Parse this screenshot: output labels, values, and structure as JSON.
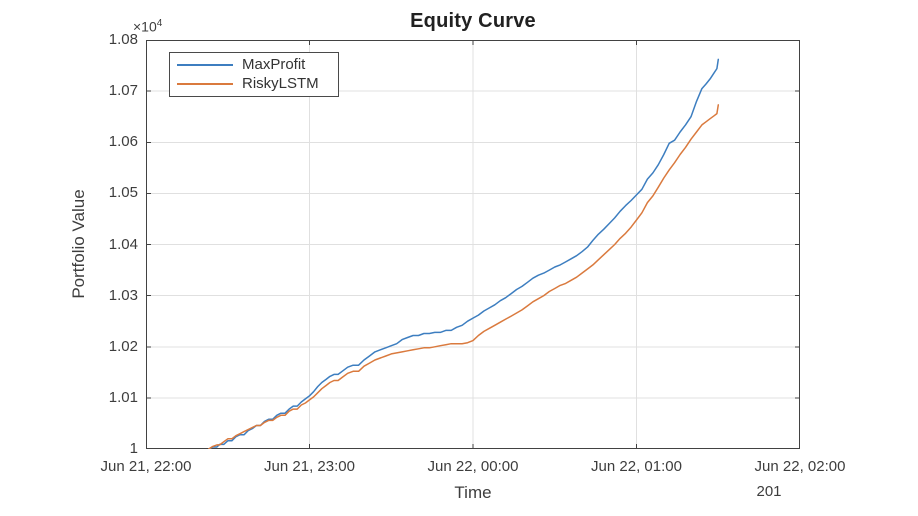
{
  "title": "Equity Curve",
  "axes": {
    "xlabel": "Time",
    "ylabel": "Portfolio Value",
    "secondary_xlabel": "201",
    "y_multiplier_base": "×10",
    "y_multiplier_exp": "4"
  },
  "colors": {
    "background": "#FFFFFF",
    "axis": "#424242",
    "grid": "#E0E0E0",
    "text": "#3D3D3D",
    "title_text": "#212121",
    "maxprofit_line": "#3D7EC0",
    "riskylstm_line": "#DA7A3E"
  },
  "chart_data": {
    "type": "line",
    "title": "Equity Curve",
    "xlabel": "Time",
    "ylabel": "Portfolio Value",
    "y_multiplier": "×10^4",
    "secondary_x_annotation": "201",
    "grid": true,
    "legend_position": "top-left-inside",
    "x_unit": "minutes after Jun 21, 22:00",
    "xlim": [
      0,
      240
    ],
    "ylim": [
      10000,
      10800
    ],
    "x_ticks": [
      {
        "pos": 0,
        "label": "Jun 21, 22:00"
      },
      {
        "pos": 60,
        "label": "Jun 21, 23:00"
      },
      {
        "pos": 120,
        "label": "Jun 22, 00:00"
      },
      {
        "pos": 180,
        "label": "Jun 22, 01:00"
      },
      {
        "pos": 240,
        "label": "Jun 22, 02:00"
      }
    ],
    "y_ticks": [
      {
        "pos": 10000,
        "label": "1"
      },
      {
        "pos": 10100,
        "label": "1.01"
      },
      {
        "pos": 10200,
        "label": "1.02"
      },
      {
        "pos": 10300,
        "label": "1.03"
      },
      {
        "pos": 10400,
        "label": "1.04"
      },
      {
        "pos": 10500,
        "label": "1.05"
      },
      {
        "pos": 10600,
        "label": "1.06"
      },
      {
        "pos": 10700,
        "label": "1.07"
      },
      {
        "pos": 10800,
        "label": "1.08"
      }
    ],
    "x_minutes": [
      23,
      24.5,
      26,
      27,
      28.5,
      30,
      31.5,
      33,
      34.5,
      36,
      37.5,
      39,
      40.5,
      42,
      43.5,
      45,
      46.5,
      48,
      49.5,
      51,
      52.5,
      54,
      55.5,
      57,
      58.5,
      60,
      61.5,
      63,
      64.5,
      66,
      67.5,
      69,
      70.5,
      72,
      74,
      76,
      78,
      80,
      82,
      84,
      86,
      88,
      90,
      92,
      94,
      96,
      98,
      100,
      102,
      104,
      106,
      108,
      110,
      112,
      114,
      116,
      118,
      120,
      122,
      124,
      126,
      128,
      130,
      132,
      134,
      136,
      138,
      140,
      142,
      144,
      146,
      148,
      150,
      152,
      154,
      156,
      158,
      160,
      162,
      164,
      166,
      168,
      170,
      172,
      174,
      176,
      178,
      180,
      182,
      184,
      186,
      188,
      190,
      192,
      194,
      196,
      198,
      200,
      202,
      204,
      205.5,
      207,
      208.5,
      209.5,
      210
    ],
    "series": [
      {
        "name": "MaxProfit",
        "color": "#3D7EC0",
        "values": [
          10000,
          10004,
          10004,
          10009,
          10009,
          10016,
          10016,
          10024,
          10028,
          10028,
          10036,
          10040,
          10046,
          10046,
          10054,
          10058,
          10058,
          10066,
          10070,
          10070,
          10078,
          10084,
          10084,
          10092,
          10098,
          10104,
          10112,
          10122,
          10130,
          10136,
          10142,
          10146,
          10146,
          10152,
          10160,
          10164,
          10164,
          10174,
          10182,
          10190,
          10194,
          10198,
          10202,
          10206,
          10214,
          10218,
          10222,
          10222,
          10226,
          10226,
          10228,
          10228,
          10232,
          10232,
          10238,
          10242,
          10250,
          10256,
          10262,
          10270,
          10276,
          10282,
          10290,
          10296,
          10304,
          10312,
          10318,
          10326,
          10334,
          10340,
          10344,
          10350,
          10356,
          10360,
          10366,
          10372,
          10378,
          10386,
          10395,
          10408,
          10420,
          10430,
          10441,
          10452,
          10465,
          10476,
          10486,
          10497,
          10508,
          10528,
          10540,
          10556,
          10576,
          10598,
          10604,
          10620,
          10634,
          10650,
          10680,
          10705,
          10714,
          10724,
          10736,
          10744,
          10762
        ]
      },
      {
        "name": "RiskyLSTM",
        "color": "#DA7A3E",
        "values": [
          10000,
          10005,
          10008,
          10008,
          10014,
          10020,
          10020,
          10026,
          10030,
          10034,
          10038,
          10042,
          10046,
          10046,
          10052,
          10056,
          10056,
          10062,
          10066,
          10066,
          10074,
          10078,
          10078,
          10086,
          10090,
          10096,
          10102,
          10110,
          10118,
          10124,
          10130,
          10134,
          10134,
          10140,
          10148,
          10152,
          10152,
          10162,
          10168,
          10174,
          10178,
          10182,
          10186,
          10188,
          10190,
          10192,
          10194,
          10196,
          10198,
          10198,
          10200,
          10202,
          10204,
          10206,
          10206,
          10206,
          10208,
          10212,
          10222,
          10230,
          10236,
          10242,
          10248,
          10254,
          10260,
          10266,
          10272,
          10280,
          10288,
          10294,
          10300,
          10308,
          10314,
          10320,
          10324,
          10330,
          10336,
          10344,
          10352,
          10360,
          10370,
          10380,
          10390,
          10400,
          10412,
          10422,
          10434,
          10448,
          10462,
          10482,
          10495,
          10512,
          10530,
          10546,
          10560,
          10576,
          10590,
          10606,
          10620,
          10634,
          10640,
          10646,
          10652,
          10656,
          10673
        ]
      }
    ]
  }
}
